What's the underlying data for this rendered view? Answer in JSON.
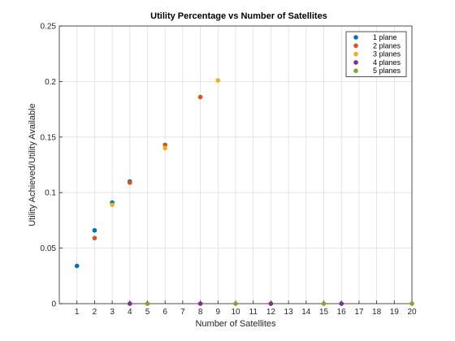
{
  "chart_data": {
    "type": "scatter",
    "title": "Utility Percentage vs Number of Satellites",
    "xlabel": "Number of Satellites",
    "ylabel": "Utility Achieved/Utility Available",
    "xlim": [
      0,
      20
    ],
    "ylim": [
      0,
      0.25
    ],
    "xticks": [
      1,
      2,
      3,
      4,
      5,
      6,
      7,
      8,
      9,
      10,
      11,
      12,
      13,
      14,
      15,
      16,
      17,
      18,
      19,
      20
    ],
    "yticks": [
      0,
      0.05,
      0.1,
      0.15,
      0.2,
      0.25
    ],
    "ytick_labels": [
      "0",
      "0.05",
      "0.1",
      "0.15",
      "0.2",
      "0.25"
    ],
    "grid": true,
    "legend_position": "top-right",
    "series": [
      {
        "name": "1 plane",
        "color": "#0072BD",
        "points": [
          [
            1,
            0.034
          ],
          [
            2,
            0.066
          ],
          [
            3,
            0.091
          ],
          [
            4,
            0.11
          ]
        ]
      },
      {
        "name": "2 planes",
        "color": "#D95319",
        "points": [
          [
            2,
            0.059
          ],
          [
            4,
            0.109
          ],
          [
            6,
            0.143
          ],
          [
            8,
            0.186
          ]
        ]
      },
      {
        "name": "3 planes",
        "color": "#EDB120",
        "points": [
          [
            3,
            0.089
          ],
          [
            6,
            0.14
          ],
          [
            9,
            0.201
          ]
        ]
      },
      {
        "name": "4 planes",
        "color": "#7E2F8E",
        "points": [
          [
            4,
            0
          ],
          [
            8,
            0
          ],
          [
            12,
            0
          ],
          [
            16,
            0
          ]
        ]
      },
      {
        "name": "5 planes",
        "color": "#77AC30",
        "points": [
          [
            5,
            0
          ],
          [
            10,
            0
          ],
          [
            15,
            0
          ],
          [
            20,
            0
          ]
        ]
      }
    ]
  }
}
